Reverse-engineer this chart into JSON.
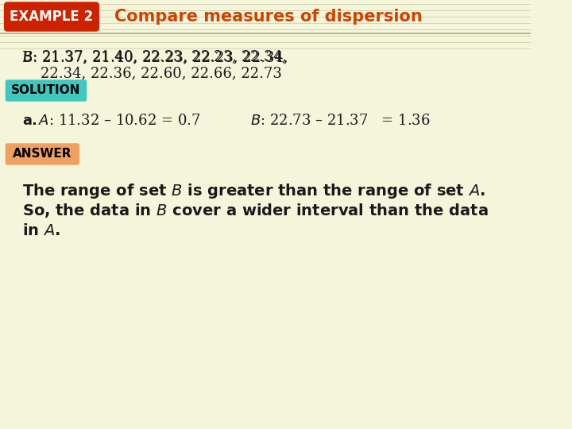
{
  "bg_color": "#f5f5dc",
  "header_bg": "#f5f5dc",
  "header_lines_color": "#c8c8a0",
  "example_box_bg": "#cc2200",
  "example_box_text": "EXAMPLE 2",
  "example_box_text_color": "#ffffff",
  "title_text": "Compare measures of dispersion",
  "title_color": "#cc4400",
  "b_data_line1": "B: 21.37, 21.40, 22.23, 22.23, 22.34,",
  "b_data_line2": "    22.34, 22.36, 22.60, 22.66, 22.73",
  "solution_bg": "#40c8c0",
  "solution_text": "SOLUTION",
  "solution_text_color": "#000000",
  "part_a_label": "a.",
  "part_a_text_A": "A: 11.32 – 10.62 = 0.7",
  "part_a_text_B": "B: 22.73 – 21.37   = 1.36",
  "answer_bg": "#f0a060",
  "answer_text": "ANSWER",
  "answer_text_color": "#000000",
  "conclusion_line1_normal": "The range of set ",
  "conclusion_line1_italic": "B",
  "conclusion_line1_normal2": " is greater than the range of set ",
  "conclusion_line1_italic2": "A",
  "conclusion_line1_normal3": ".",
  "conclusion_line2_normal": "So, the data in ",
  "conclusion_line2_italic": "B",
  "conclusion_line2_normal2": " cover a wider interval than the data",
  "conclusion_line3_normal": "in ",
  "conclusion_line3_italic": "A",
  "conclusion_line3_normal3": ".",
  "main_text_color": "#1a1a1a",
  "font_size_main": 13,
  "font_size_header": 15,
  "font_size_label": 13
}
